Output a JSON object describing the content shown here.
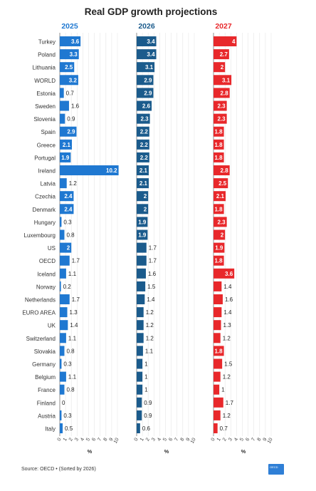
{
  "chart_data": {
    "type": "bar",
    "title": "Real GDP growth projections",
    "categories": [
      "Turkey",
      "Poland",
      "Lithuania",
      "WORLD",
      "Estonia",
      "Sweden",
      "Slovenia",
      "Spain",
      "Greece",
      "Portugal",
      "Ireland",
      "Latvia",
      "Czechia",
      "Denmark",
      "Hungary",
      "Luxembourg",
      "US",
      "OECD",
      "Iceland",
      "Norway",
      "Netherlands",
      "EURO AREA",
      "UK",
      "Switzerland",
      "Slovakia",
      "Germany",
      "Belgium",
      "France",
      "Finland",
      "Austria",
      "Italy"
    ],
    "series": [
      {
        "name": "2025",
        "color": "#1f78d1",
        "values": [
          3.6,
          3.3,
          2.5,
          3.2,
          0.7,
          1.6,
          0.9,
          2.9,
          2.1,
          1.9,
          10.2,
          1.2,
          2.4,
          2.4,
          0.3,
          0.8,
          2,
          1.7,
          1.1,
          0.2,
          1.7,
          1.3,
          1.4,
          1.1,
          0.8,
          0.3,
          1.1,
          0.8,
          0,
          0.3,
          0.5
        ]
      },
      {
        "name": "2026",
        "color": "#1b5b8c",
        "values": [
          3.4,
          3.4,
          3.1,
          2.9,
          2.9,
          2.6,
          2.3,
          2.2,
          2.2,
          2.2,
          2.1,
          2.1,
          2,
          2,
          1.9,
          1.9,
          1.7,
          1.7,
          1.6,
          1.5,
          1.4,
          1.2,
          1.2,
          1.2,
          1.1,
          1,
          1,
          1,
          0.9,
          0.9,
          0.6
        ]
      },
      {
        "name": "2027",
        "color": "#e8282b",
        "values": [
          4,
          2.7,
          2,
          3.1,
          2.8,
          2.3,
          2.3,
          1.8,
          1.8,
          1.8,
          2.8,
          2.5,
          2.1,
          1.8,
          2.3,
          2,
          1.9,
          1.8,
          3.6,
          1.4,
          1.6,
          1.4,
          1.3,
          1.2,
          1.8,
          1.5,
          1.2,
          1,
          1.7,
          1.2,
          0.7
        ]
      }
    ],
    "xlim": [
      0,
      10
    ],
    "xticks": [
      "0",
      "1",
      "2",
      "3",
      "4",
      "5",
      "6",
      "7",
      "8",
      "9",
      "10"
    ],
    "xlabel": "%",
    "grid": false,
    "legend": "panel titles above each column"
  },
  "source": "Source: OECD • (Sorted by 2026)",
  "logo_text": "OECD"
}
